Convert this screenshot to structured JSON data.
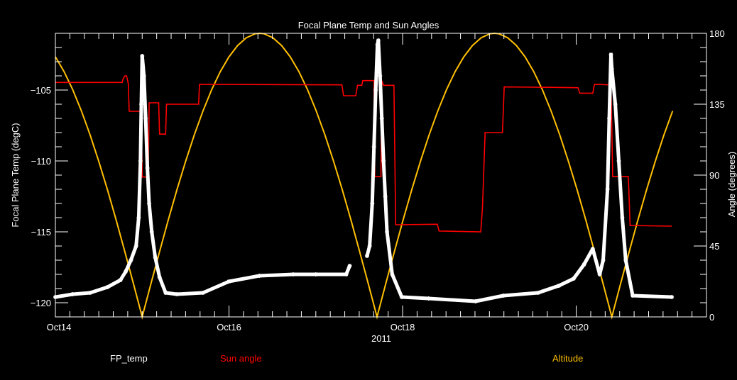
{
  "chart_data": {
    "type": "line",
    "title": "Focal Plane Temp and Sun Angles",
    "xlabel": "2011",
    "ylabel": "Focal Plane Temp (degC)",
    "ylabel_right": "Angle (degrees)",
    "x_units": "days since Oct14 00:00",
    "xlim": [
      0,
      7.5
    ],
    "ylim": [
      -121,
      -101
    ],
    "ylim_right": [
      0,
      180
    ],
    "x_ticks": [
      {
        "value": 0,
        "label": "Oct14"
      },
      {
        "value": 2,
        "label": "Oct16"
      },
      {
        "value": 4,
        "label": "Oct18"
      },
      {
        "value": 6,
        "label": "Oct20"
      }
    ],
    "y_ticks": [
      {
        "value": -105,
        "label": "-105"
      },
      {
        "value": -110,
        "label": "-110"
      },
      {
        "value": -115,
        "label": "-115"
      },
      {
        "value": -120,
        "label": "-120"
      }
    ],
    "y_ticks_right": [
      {
        "value": 0,
        "label": "0"
      },
      {
        "value": 45,
        "label": "45"
      },
      {
        "value": 90,
        "label": "90"
      },
      {
        "value": 135,
        "label": "135"
      },
      {
        "value": 180,
        "label": "180"
      }
    ],
    "grid": false,
    "legend_placement": "bottom",
    "series": [
      {
        "name": "FP_temp",
        "axis": "left",
        "color": "#ffffff",
        "marker": "asterisk",
        "x": [
          0,
          0.2,
          0.4,
          0.6,
          0.75,
          0.81,
          0.87,
          0.93,
          0.96,
          0.98,
          0.99,
          1.0,
          1.02,
          1.04,
          1.06,
          1.08,
          1.11,
          1.15,
          1.2,
          1.27,
          1.4,
          1.7,
          2.0,
          2.35,
          2.74,
          3.0,
          3.35,
          3.39,
          3.59,
          3.62,
          3.65,
          3.67,
          3.69,
          3.71,
          3.72,
          3.74,
          3.76,
          3.78,
          3.8,
          3.82,
          3.88,
          3.99,
          4.3,
          4.84,
          5.16,
          5.56,
          5.8,
          5.97,
          6.09,
          6.19,
          6.27,
          6.31,
          6.36,
          6.38,
          6.4,
          6.41,
          6.45,
          6.49,
          6.53,
          6.57,
          6.65,
          7.1
        ],
        "y": [
          -119.6,
          -119.4,
          -119.3,
          -118.9,
          -118.4,
          -117.8,
          -117.0,
          -116.0,
          -114.0,
          -110.0,
          -106.0,
          -102.6,
          -104.0,
          -107.0,
          -110.5,
          -113.0,
          -115.0,
          -116.8,
          -118.2,
          -119.3,
          -119.4,
          -119.3,
          -118.5,
          -118.1,
          -118.0,
          -118.0,
          -118.0,
          -117.4,
          -116.7,
          -116.0,
          -113.0,
          -109.0,
          -105.0,
          -101.8,
          -101.5,
          -104.0,
          -107.0,
          -110.0,
          -112.5,
          -115.0,
          -118.0,
          -119.6,
          -119.7,
          -119.9,
          -119.5,
          -119.3,
          -118.8,
          -118.3,
          -117.3,
          -116.2,
          -118.0,
          -117.0,
          -112.0,
          -107.0,
          -102.5,
          -103.5,
          -106.0,
          -110.0,
          -114.0,
          -117.0,
          -119.5,
          -119.6
        ],
        "gap_after_x": 3.39
      },
      {
        "name": "Sun angle",
        "axis": "right",
        "color": "#ff0000",
        "style": "step",
        "x": [
          0,
          0.77,
          0.78,
          0.8,
          0.82,
          0.84,
          0.85,
          0.99,
          1.0,
          1.07,
          1.08,
          1.19,
          1.2,
          1.27,
          1.28,
          1.65,
          1.66,
          3.3,
          3.32,
          3.46,
          3.48,
          3.53,
          3.54,
          3.67,
          3.68,
          3.75,
          3.76,
          3.78,
          3.9,
          3.92,
          4.4,
          4.42,
          4.9,
          4.92,
          4.95,
          5.15,
          5.17,
          6.02,
          6.04,
          6.19,
          6.21,
          6.4,
          6.42,
          6.6,
          6.62,
          7.1
        ],
        "y": [
          148.8,
          148.8,
          151,
          153,
          153,
          148,
          130.5,
          130.5,
          88.8,
          88.8,
          135.9,
          135.9,
          116,
          116,
          135,
          135,
          147.6,
          147.3,
          140.4,
          140.4,
          147,
          147,
          150,
          150,
          89,
          89,
          150,
          147,
          147,
          58.5,
          58.8,
          54.5,
          54,
          69.5,
          117,
          117,
          146,
          145.5,
          142,
          142,
          147.6,
          147.3,
          89,
          89,
          58,
          57.6
        ]
      },
      {
        "name": "Altitude",
        "axis": "right",
        "color": "#ffbf00",
        "x": [
          0,
          0.1,
          0.2,
          0.3,
          0.4,
          0.5,
          0.6,
          0.7,
          0.8,
          0.9,
          1.0,
          1.1,
          1.2,
          1.3,
          1.4,
          1.5,
          1.6,
          1.7,
          1.8,
          1.9,
          2.0,
          2.1,
          2.2,
          2.3,
          2.3525,
          2.405,
          2.505,
          2.605,
          2.705,
          2.805,
          2.905,
          3.005,
          3.105,
          3.205,
          3.305,
          3.405,
          3.505,
          3.605,
          3.705,
          3.805,
          3.905,
          4.005,
          4.105,
          4.205,
          4.305,
          4.405,
          4.505,
          4.605,
          4.705,
          4.805,
          4.905,
          5.005,
          5.0575,
          5.11,
          5.21,
          5.31,
          5.41,
          5.51,
          5.61,
          5.71,
          5.81,
          5.91,
          6.01,
          6.11,
          6.21,
          6.31,
          6.41,
          6.51,
          6.61,
          6.71,
          6.81,
          6.91,
          7.01,
          7.11
        ],
        "y": [
          165.1,
          155.7,
          144.2,
          130.7,
          115.5,
          98.7,
          80.7,
          61.5,
          41.4,
          20.9,
          0,
          20.9,
          41.4,
          61.5,
          80.7,
          98.7,
          115.5,
          130.7,
          144.2,
          155.7,
          165.1,
          172.3,
          177.2,
          179.7,
          180,
          179.7,
          177.2,
          172.3,
          165.1,
          155.7,
          144.2,
          130.7,
          115.5,
          98.7,
          80.7,
          61.5,
          41.4,
          20.9,
          0,
          20.9,
          41.4,
          61.5,
          80.7,
          98.7,
          115.5,
          130.7,
          144.2,
          155.7,
          165.1,
          172.3,
          177.2,
          179.7,
          180,
          179.7,
          177.2,
          172.3,
          165.1,
          155.7,
          144.2,
          130.7,
          115.5,
          98.7,
          80.7,
          61.5,
          41.4,
          20.9,
          0,
          20.9,
          41.4,
          61.5,
          80.7,
          98.7,
          115.5,
          130.7
        ]
      }
    ]
  }
}
